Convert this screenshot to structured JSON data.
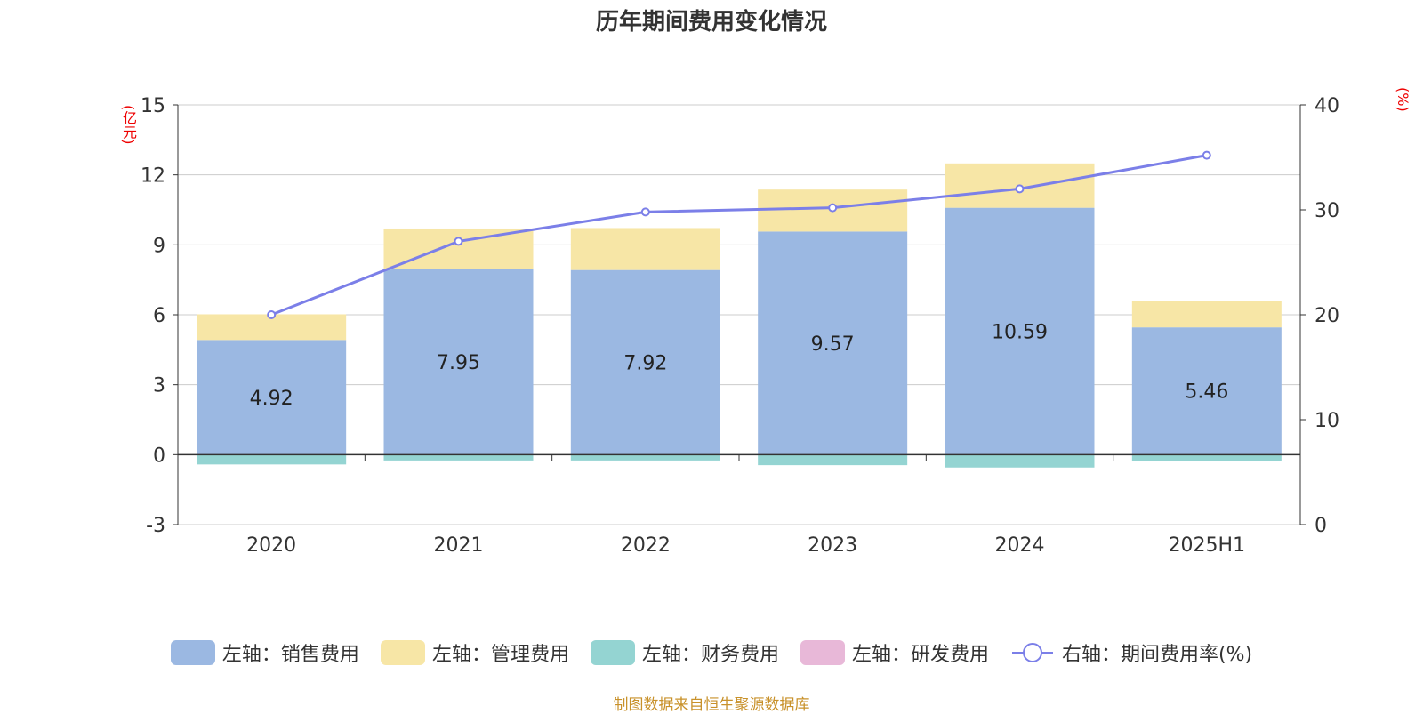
{
  "chart_data": {
    "type": "bar",
    "title": "历年期间费用变化情况",
    "categories": [
      "2020",
      "2021",
      "2022",
      "2023",
      "2024",
      "2025H1"
    ],
    "left_axis": {
      "unit": "(亿元)",
      "min": -3,
      "max": 15,
      "ticks": [
        -3,
        0,
        3,
        6,
        9,
        12,
        15
      ]
    },
    "right_axis": {
      "unit": "(%)",
      "min": 0,
      "max": 40,
      "ticks": [
        0,
        10,
        20,
        30,
        40
      ]
    },
    "series": [
      {
        "name": "左轴：销售费用",
        "kind": "bar",
        "axis": "left",
        "color": "#9bb8e2",
        "values": [
          4.92,
          7.95,
          7.92,
          9.57,
          10.59,
          5.46
        ],
        "show_labels": true
      },
      {
        "name": "左轴：管理费用",
        "kind": "bar",
        "axis": "left",
        "color": "#f7e6a6",
        "values": [
          1.1,
          1.75,
          1.8,
          1.8,
          1.9,
          1.13
        ],
        "show_labels": false
      },
      {
        "name": "左轴：财务费用",
        "kind": "bar",
        "axis": "left",
        "color": "#94d4d2",
        "values": [
          -0.42,
          -0.25,
          -0.25,
          -0.45,
          -0.55,
          -0.28
        ],
        "show_labels": false
      },
      {
        "name": "左轴：研发费用",
        "kind": "bar",
        "axis": "left",
        "color": "#e8b8d8",
        "values": [
          0,
          0,
          0,
          0,
          0,
          0
        ],
        "show_labels": false
      },
      {
        "name": "右轴：期间费用率(%)",
        "kind": "line",
        "axis": "right",
        "color": "#7b7fe8",
        "values": [
          20.0,
          27.0,
          29.8,
          30.2,
          32.0,
          35.2
        ],
        "show_labels": false
      }
    ],
    "grid": true,
    "legend_position": "bottom"
  },
  "source_note": "制图数据来自恒生聚源数据库"
}
